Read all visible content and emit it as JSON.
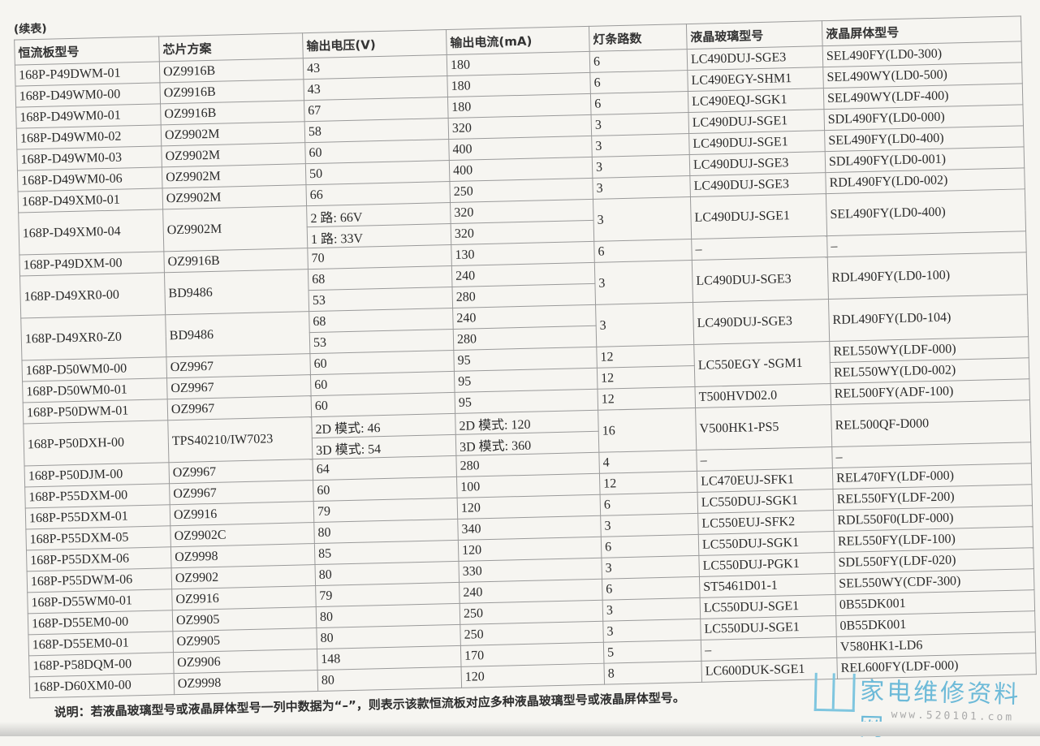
{
  "continued_label": "(续表)",
  "headers": [
    "恒流板型号",
    "芯片方案",
    "输出电压(V)",
    "输出电流(mA)",
    "灯条路数",
    "液晶玻璃型号",
    "液晶屏体型号"
  ],
  "rows": [
    [
      "168P-P49DWM-01",
      "OZ9916B",
      "43",
      "180",
      "6",
      "LC490DUJ-SGE3",
      "SEL490FY(LD0-300)"
    ],
    [
      "168P-D49WM0-00",
      "OZ9916B",
      "43",
      "180",
      "6",
      "LC490EGY-SHM1",
      "SEL490WY(LD0-500)"
    ],
    [
      "168P-D49WM0-01",
      "OZ9916B",
      "67",
      "180",
      "6",
      "LC490EQJ-SGK1",
      "SEL490WY(LDF-400)"
    ],
    [
      "168P-D49WM0-02",
      "OZ9902M",
      "58",
      "320",
      "3",
      "LC490DUJ-SGE1",
      "SDL490FY(LD0-000)"
    ],
    [
      "168P-D49WM0-03",
      "OZ9902M",
      "60",
      "400",
      "3",
      "LC490DUJ-SGE1",
      "SEL490FY(LD0-400)"
    ],
    [
      "168P-D49WM0-06",
      "OZ9902M",
      "50",
      "400",
      "3",
      "LC490DUJ-SGE3",
      "SDL490FY(LD0-001)"
    ],
    [
      "168P-D49XM0-01",
      "OZ9902M",
      "66",
      "250",
      "3",
      "LC490DUJ-SGE3",
      "RDL490FY(LD0-002)"
    ],
    [
      "168P-D49XM0-04",
      "OZ9902M",
      "2 路: 66V",
      "320",
      "3",
      "LC490DUJ-SGE1",
      "SEL490FY(LD0-400)"
    ],
    [
      null,
      null,
      "1 路: 33V",
      "320",
      null,
      null,
      null
    ],
    [
      "168P-P49DXM-00",
      "OZ9916B",
      "70",
      "130",
      "6",
      "–",
      "–"
    ],
    [
      "168P-D49XR0-00",
      "BD9486",
      "68",
      "240",
      "3",
      "LC490DUJ-SGE3",
      "RDL490FY(LD0-100)"
    ],
    [
      null,
      null,
      "53",
      "280",
      null,
      null,
      null
    ],
    [
      "168P-D49XR0-Z0",
      "BD9486",
      "68",
      "240",
      "3",
      "LC490DUJ-SGE3",
      "RDL490FY(LD0-104)"
    ],
    [
      null,
      null,
      "53",
      "280",
      null,
      null,
      null
    ],
    [
      "168P-D50WM0-00",
      "OZ9967",
      "60",
      "95",
      "12",
      "LC550EGY -SGM1",
      "REL550WY(LDF-000)"
    ],
    [
      "168P-D50WM0-01",
      "OZ9967",
      "60",
      "95",
      "12",
      null,
      "REL550WY(LD0-002)"
    ],
    [
      "168P-P50DWM-01",
      "OZ9967",
      "60",
      "95",
      "12",
      "T500HVD02.0",
      "REL500FY(ADF-100)"
    ],
    [
      "168P-P50DXH-00",
      "TPS40210/IW7023",
      "2D 模式: 46",
      "2D 模式: 120",
      "16",
      "V500HK1-PS5",
      "REL500QF-D000"
    ],
    [
      null,
      null,
      "3D 模式: 54",
      "3D 模式: 360",
      null,
      null,
      null
    ],
    [
      "168P-P50DJM-00",
      "OZ9967",
      "64",
      "280",
      "4",
      "–",
      "–"
    ],
    [
      "168P-P55DXM-00",
      "OZ9967",
      "60",
      "100",
      "12",
      "LC470EUJ-SFK1",
      "REL470FY(LDF-000)"
    ],
    [
      "168P-P55DXM-01",
      "OZ9916",
      "79",
      "120",
      "6",
      "LC550DUJ-SGK1",
      "REL550FY(LDF-200)"
    ],
    [
      "168P-P55DXM-05",
      "OZ9902C",
      "80",
      "340",
      "3",
      "LC550EUJ-SFK2",
      "RDL550F0(LDF-000)"
    ],
    [
      "168P-P55DXM-06",
      "OZ9998",
      "85",
      "120",
      "6",
      "LC550DUJ-SGK1",
      "REL550FY(LDF-100)"
    ],
    [
      "168P-P55DWM-06",
      "OZ9902",
      "80",
      "330",
      "3",
      "LC550DUJ-PGK1",
      "SDL550FY(LDF-020)"
    ],
    [
      "168P-D55WM0-01",
      "OZ9916",
      "79",
      "240",
      "6",
      "ST5461D01-1",
      "SEL550WY(CDF-300)"
    ],
    [
      "168P-D55EM0-00",
      "OZ9905",
      "80",
      "250",
      "3",
      "LC550DUJ-SGE1",
      "0B55DK001"
    ],
    [
      "168P-D55EM0-01",
      "OZ9905",
      "80",
      "250",
      "3",
      "LC550DUJ-SGE1",
      "0B55DK001"
    ],
    [
      "168P-P58DQM-00",
      "OZ9906",
      "148",
      "170",
      "5",
      "–",
      "V580HK1-LD6"
    ],
    [
      "168P-D60XM0-00",
      "OZ9998",
      "80",
      "120",
      "8",
      "LC600DUK-SGE1",
      "REL600FY(LDF-000)"
    ]
  ],
  "footer_note": "说明：若液晶玻璃型号或液晶屏体型号一列中数据为“–”，则表示该款恒流板对应多种液晶玻璃型号或液晶屏体型号。",
  "watermark_logo": {
    "name": "家电维修资料网",
    "url": "www.520101.com",
    "color": "#6dbad8"
  }
}
